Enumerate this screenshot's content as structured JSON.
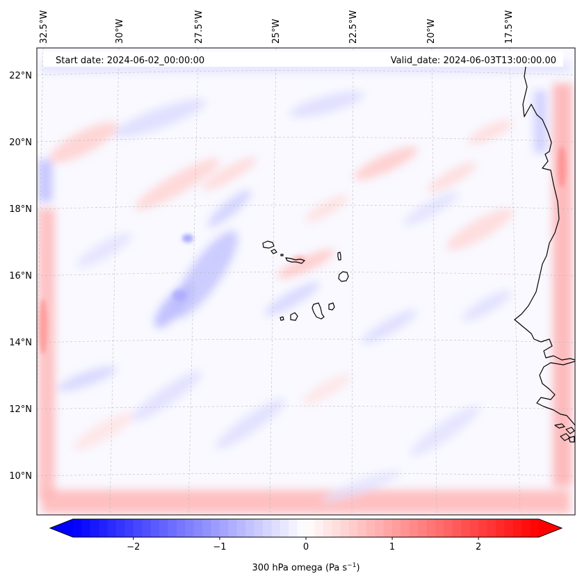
{
  "map": {
    "start_date": "Start date: 2024-06-02_00:00:00",
    "valid_date": "Valid_date: 2024-06-03T13:00:00.00",
    "lon_labels": [
      "32.5°W",
      "30°W",
      "27.5°W",
      "25°W",
      "22.5°W",
      "20°W",
      "17.5°W"
    ],
    "lat_labels": [
      "22°N",
      "20°N",
      "18°N",
      "16°N",
      "14°N",
      "12°N",
      "10°N"
    ],
    "gridlines": true,
    "coastline_color": "#000000"
  },
  "colorbar": {
    "label": "300 hPa omega (Pa s",
    "label_sup": "−1",
    "label_close": ")",
    "ticks": [
      "−2",
      "−1",
      "0",
      "1",
      "2"
    ],
    "range": [
      -2.7,
      2.7
    ],
    "colormap": "bwr",
    "extend": "both",
    "low_color": "#0000ff",
    "high_color": "#ff0000"
  }
}
